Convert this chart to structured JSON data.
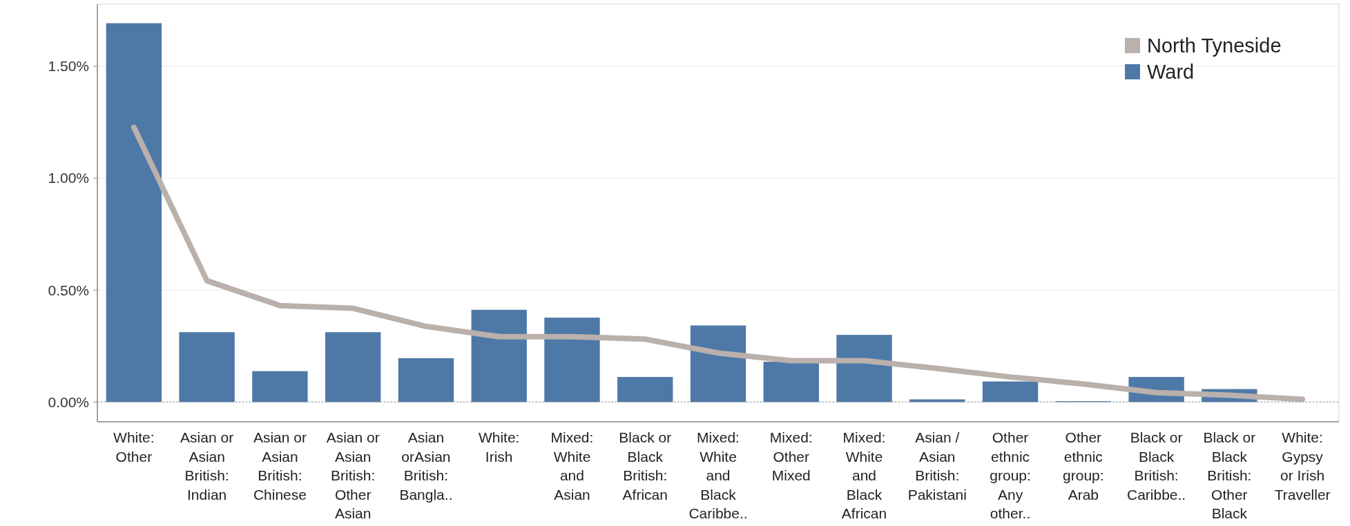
{
  "chart_data": {
    "type": "bar",
    "categories": [
      "White: Other",
      "Asian or Asian British: Indian",
      "Asian or Asian British: Chinese",
      "Asian or Asian British: Other Asian",
      "Asian orAsian British: Bangla..",
      "White: Irish",
      "Mixed: White and Asian",
      "Black or Black British: African",
      "Mixed: White and Black Caribbe..",
      "Mixed: Other Mixed",
      "Mixed: White and Black African",
      "Asian / Asian British: Pakistani",
      "Other ethnic group: Any other..",
      "Other ethnic group: Arab",
      "Black or Black British: Caribbe..",
      "Black or Black British: Other Black",
      "White: Gypsy or Irish Traveller"
    ],
    "series": [
      {
        "name": "North Tyneside",
        "type": "line",
        "color": "#bab0ac",
        "values": [
          1.227,
          0.542,
          0.431,
          0.419,
          0.338,
          0.292,
          0.292,
          0.281,
          0.219,
          0.185,
          0.185,
          0.15,
          0.112,
          0.081,
          0.042,
          0.031,
          0.012
        ]
      },
      {
        "name": "Ward",
        "color": "#4e79a7",
        "values": [
          1.692,
          0.312,
          0.138,
          0.312,
          0.196,
          0.412,
          0.377,
          0.112,
          0.342,
          0.18,
          0.3,
          0.012,
          0.092,
          0.004,
          0.112,
          0.058,
          null
        ]
      }
    ],
    "ylim": [
      -0.088,
      1.777
    ],
    "yticks": [
      {
        "value": 0,
        "label": "0.00%"
      },
      {
        "value": 0.5,
        "label": "0.50%"
      },
      {
        "value": 1,
        "label": "1.00%"
      },
      {
        "value": 1.5,
        "label": "1.50%"
      }
    ],
    "grid": "y",
    "ref_lines": [
      {
        "axis": "y",
        "value": 0,
        "color": "#999999",
        "line_style": "dotted"
      }
    ],
    "legend": "top right",
    "marker": "none"
  }
}
